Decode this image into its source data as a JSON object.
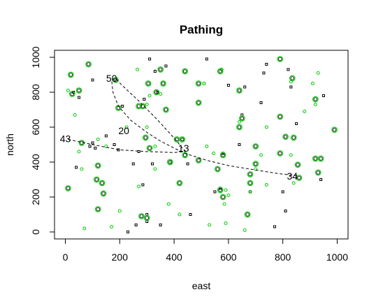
{
  "chart_data": {
    "type": "scatter",
    "title": "Pathing",
    "xlabel": "east",
    "ylabel": "north",
    "xlim": [
      -40,
      1040
    ],
    "ylim": [
      -40,
      1040
    ],
    "xticks": [
      "0",
      "200",
      "400",
      "600",
      "800",
      "1000"
    ],
    "yticks": [
      "0",
      "200",
      "400",
      "600",
      "800",
      "1000"
    ],
    "grid": false,
    "legend": "none",
    "colors": {
      "green": "#00cc00",
      "black": "#000000",
      "path": "#000000"
    },
    "path_labels": [
      {
        "text": "50",
        "x": 170,
        "y": 880
      },
      {
        "text": "20",
        "x": 215,
        "y": 580
      },
      {
        "text": "43",
        "x": 0,
        "y": 535
      },
      {
        "text": "13",
        "x": 435,
        "y": 480
      },
      {
        "text": "34",
        "x": 835,
        "y": 320
      }
    ],
    "path": [
      [
        10,
        530
      ],
      [
        100,
        500
      ],
      [
        200,
        470
      ],
      [
        300,
        460
      ],
      [
        400,
        455
      ],
      [
        440,
        460
      ],
      [
        410,
        520
      ],
      [
        340,
        640
      ],
      [
        270,
        750
      ],
      [
        205,
        845
      ],
      [
        185,
        880
      ],
      [
        170,
        870
      ],
      [
        175,
        800
      ],
      [
        195,
        720
      ],
      [
        240,
        640
      ],
      [
        300,
        570
      ],
      [
        350,
        520
      ],
      [
        400,
        480
      ],
      [
        440,
        450
      ],
      [
        520,
        410
      ],
      [
        600,
        380
      ],
      [
        700,
        355
      ],
      [
        780,
        335
      ],
      [
        860,
        320
      ]
    ],
    "circles": [
      [
        20,
        900
      ],
      [
        25,
        790
      ],
      [
        50,
        810
      ],
      [
        85,
        960
      ],
      [
        185,
        870
      ],
      [
        195,
        710
      ],
      [
        270,
        720
      ],
      [
        285,
        720
      ],
      [
        305,
        850
      ],
      [
        335,
        800
      ],
      [
        350,
        930
      ],
      [
        360,
        850
      ],
      [
        370,
        700
      ],
      [
        440,
        920
      ],
      [
        490,
        850
      ],
      [
        490,
        740
      ],
      [
        570,
        920
      ],
      [
        640,
        810
      ],
      [
        650,
        650
      ],
      [
        640,
        600
      ],
      [
        790,
        990
      ],
      [
        790,
        660
      ],
      [
        835,
        880
      ],
      [
        810,
        545
      ],
      [
        840,
        540
      ],
      [
        790,
        450
      ],
      [
        855,
        385
      ],
      [
        920,
        760
      ],
      [
        940,
        420
      ],
      [
        930,
        340
      ],
      [
        920,
        420
      ],
      [
        990,
        585
      ],
      [
        10,
        250
      ],
      [
        115,
        300
      ],
      [
        120,
        380
      ],
      [
        135,
        280
      ],
      [
        140,
        220
      ],
      [
        120,
        130
      ],
      [
        280,
        90
      ],
      [
        300,
        80
      ],
      [
        310,
        480
      ],
      [
        385,
        400
      ],
      [
        420,
        280
      ],
      [
        430,
        530
      ],
      [
        440,
        440
      ],
      [
        490,
        410
      ],
      [
        560,
        360
      ],
      [
        580,
        440
      ],
      [
        570,
        240
      ],
      [
        580,
        200
      ],
      [
        680,
        330
      ],
      [
        680,
        280
      ],
      [
        670,
        100
      ],
      [
        700,
        490
      ],
      [
        700,
        390
      ],
      [
        860,
        310
      ],
      [
        60,
        510
      ],
      [
        410,
        530
      ],
      [
        295,
        540
      ]
    ],
    "small_green": [
      [
        10,
        810
      ],
      [
        35,
        670
      ],
      [
        50,
        460
      ],
      [
        60,
        360
      ],
      [
        70,
        20
      ],
      [
        120,
        530
      ],
      [
        170,
        30
      ],
      [
        200,
        120
      ],
      [
        225,
        600
      ],
      [
        265,
        930
      ],
      [
        300,
        730
      ],
      [
        300,
        600
      ],
      [
        310,
        780
      ],
      [
        330,
        490
      ],
      [
        330,
        360
      ],
      [
        350,
        790
      ],
      [
        380,
        160
      ],
      [
        390,
        400
      ],
      [
        420,
        100
      ],
      [
        430,
        530
      ],
      [
        510,
        850
      ],
      [
        520,
        490
      ],
      [
        530,
        40
      ],
      [
        545,
        450
      ],
      [
        575,
        930
      ],
      [
        585,
        160
      ],
      [
        590,
        240
      ],
      [
        590,
        50
      ],
      [
        600,
        210
      ],
      [
        640,
        630
      ],
      [
        660,
        10
      ],
      [
        680,
        230
      ],
      [
        700,
        360
      ],
      [
        720,
        440
      ],
      [
        740,
        600
      ],
      [
        740,
        270
      ],
      [
        830,
        440
      ],
      [
        830,
        860
      ],
      [
        840,
        280
      ],
      [
        880,
        690
      ],
      [
        910,
        850
      ],
      [
        920,
        730
      ],
      [
        930,
        910
      ],
      [
        150,
        490
      ],
      [
        270,
        260
      ],
      [
        510,
        850
      ]
    ],
    "small_black": [
      [
        30,
        800
      ],
      [
        40,
        370
      ],
      [
        50,
        770
      ],
      [
        90,
        490
      ],
      [
        100,
        870
      ],
      [
        110,
        480
      ],
      [
        150,
        550
      ],
      [
        180,
        500
      ],
      [
        195,
        470
      ],
      [
        210,
        720
      ],
      [
        250,
        390
      ],
      [
        260,
        40
      ],
      [
        270,
        460
      ],
      [
        285,
        270
      ],
      [
        290,
        760
      ],
      [
        300,
        100
      ],
      [
        300,
        60
      ],
      [
        310,
        990
      ],
      [
        320,
        390
      ],
      [
        330,
        920
      ],
      [
        340,
        800
      ],
      [
        350,
        40
      ],
      [
        370,
        950
      ],
      [
        450,
        390
      ],
      [
        460,
        100
      ],
      [
        520,
        990
      ],
      [
        550,
        230
      ],
      [
        570,
        250
      ],
      [
        580,
        450
      ],
      [
        600,
        840
      ],
      [
        640,
        500
      ],
      [
        650,
        670
      ],
      [
        660,
        830
      ],
      [
        680,
        230
      ],
      [
        720,
        740
      ],
      [
        730,
        910
      ],
      [
        740,
        960
      ],
      [
        770,
        30
      ],
      [
        800,
        230
      ],
      [
        810,
        120
      ],
      [
        820,
        930
      ],
      [
        830,
        830
      ],
      [
        850,
        620
      ],
      [
        940,
        300
      ],
      [
        950,
        780
      ],
      [
        230,
        0
      ],
      [
        100,
        510
      ]
    ]
  }
}
